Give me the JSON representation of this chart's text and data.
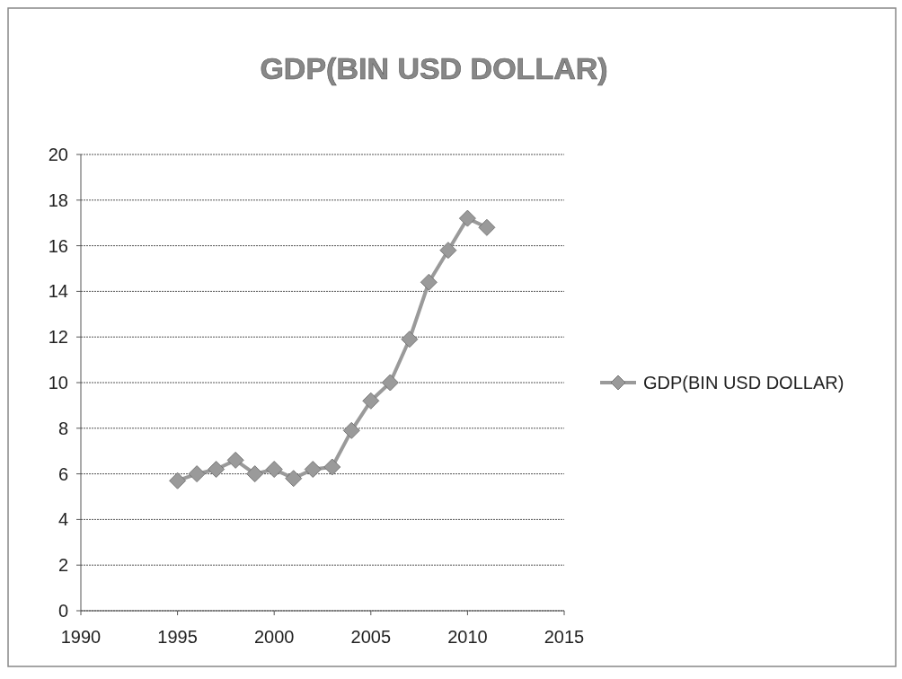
{
  "chart_data": {
    "type": "line",
    "title": "GDP(BIN USD DOLLAR)",
    "x": [
      1995,
      1996,
      1997,
      1998,
      1999,
      2000,
      2001,
      2002,
      2003,
      2004,
      2005,
      2006,
      2007,
      2008,
      2009,
      2010,
      2011
    ],
    "series": [
      {
        "name": "GDP(BIN USD DOLLAR)",
        "color": "#9a9a9a",
        "values": [
          5.7,
          6.0,
          6.2,
          6.6,
          6.0,
          6.2,
          5.8,
          6.2,
          6.3,
          7.9,
          9.2,
          10.0,
          11.9,
          14.4,
          15.8,
          17.2,
          16.8
        ]
      }
    ],
    "xlim": [
      1990,
      2015
    ],
    "xticks": [
      1990,
      1995,
      2000,
      2005,
      2010,
      2015
    ],
    "ylim": [
      0,
      20
    ],
    "yticks": [
      0,
      2,
      4,
      6,
      8,
      10,
      12,
      14,
      16,
      18,
      20
    ],
    "grid": "y",
    "legend": "right",
    "marker": "diamond",
    "line_style": "solid"
  }
}
